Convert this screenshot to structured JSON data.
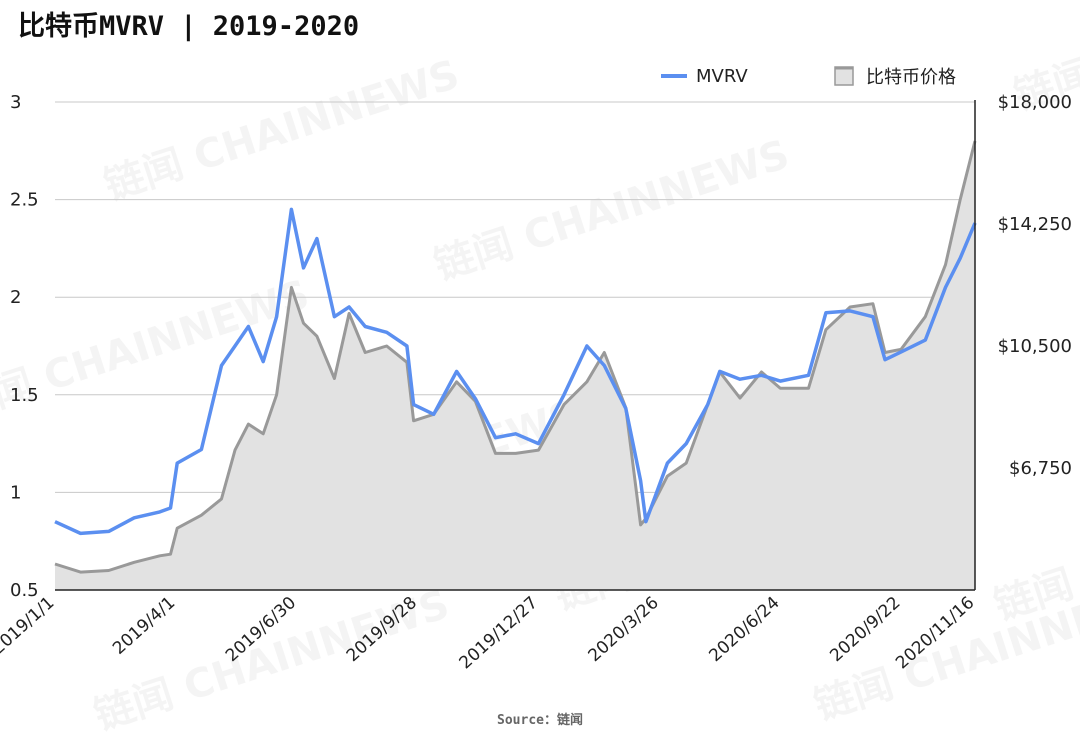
{
  "chart_data": {
    "type": "line",
    "title": "比特币MVRV | 2019-2020",
    "source": "Source：链闻",
    "watermark": "链闻 CHAINNEWS",
    "legend": {
      "placement": "top-right",
      "entries": [
        "MVRV",
        "比特币价格"
      ]
    },
    "colors": {
      "mvrv": "#5b8ff0",
      "price_line": "#999999",
      "price_fill": "#e2e2e2",
      "grid": "#c8c8c8"
    },
    "x_ticks": [
      "2019/1/1",
      "2019/4/1",
      "2019/6/30",
      "2019/9/28",
      "2019/12/27",
      "2020/3/26",
      "2020/6/24",
      "2020/9/22",
      "2020/11/16"
    ],
    "y_left": {
      "range": [
        0.5,
        3
      ],
      "ticks": [
        "0.5",
        "1",
        "1.5",
        "2",
        "2.5",
        "3"
      ]
    },
    "y_right": {
      "range": [
        3000,
        18000
      ],
      "ticks": [
        "$6,750",
        "$10,500",
        "$14,250",
        "$18,000"
      ]
    },
    "series": [
      {
        "name": "MVRV",
        "axis": "left",
        "x": [
          "2019/1/1",
          "2019/1/20",
          "2019/2/10",
          "2019/3/1",
          "2019/3/20",
          "2019/3/28",
          "2019/4/2",
          "2019/4/20",
          "2019/5/5",
          "2019/5/15",
          "2019/5/25",
          "2019/6/5",
          "2019/6/15",
          "2019/6/26",
          "2019/7/5",
          "2019/7/15",
          "2019/7/28",
          "2019/8/8",
          "2019/8/20",
          "2019/9/5",
          "2019/9/20",
          "2019/9/25",
          "2019/10/10",
          "2019/10/27",
          "2019/11/10",
          "2019/11/25",
          "2019/12/10",
          "2019/12/27",
          "2020/1/15",
          "2020/2/1",
          "2020/2/14",
          "2020/3/1",
          "2020/3/12",
          "2020/3/16",
          "2020/4/1",
          "2020/4/15",
          "2020/5/1",
          "2020/5/10",
          "2020/5/25",
          "2020/6/10",
          "2020/6/24",
          "2020/7/15",
          "2020/7/28",
          "2020/8/15",
          "2020/9/1",
          "2020/9/10",
          "2020/9/22",
          "2020/10/10",
          "2020/10/25",
          "2020/11/5",
          "2020/11/16"
        ],
        "values": [
          0.85,
          0.79,
          0.8,
          0.87,
          0.9,
          0.92,
          1.15,
          1.22,
          1.65,
          1.75,
          1.85,
          1.67,
          1.9,
          2.45,
          2.15,
          2.3,
          1.9,
          1.95,
          1.85,
          1.82,
          1.75,
          1.45,
          1.4,
          1.62,
          1.48,
          1.28,
          1.3,
          1.25,
          1.5,
          1.75,
          1.65,
          1.43,
          1.06,
          0.85,
          1.15,
          1.25,
          1.45,
          1.62,
          1.58,
          1.6,
          1.57,
          1.6,
          1.92,
          1.93,
          1.9,
          1.68,
          1.72,
          1.78,
          2.05,
          2.2,
          2.38
        ]
      },
      {
        "name": "比特币价格",
        "axis": "right",
        "x": [
          "2019/1/1",
          "2019/1/20",
          "2019/2/10",
          "2019/3/1",
          "2019/3/20",
          "2019/3/28",
          "2019/4/2",
          "2019/4/20",
          "2019/5/5",
          "2019/5/15",
          "2019/5/25",
          "2019/6/5",
          "2019/6/15",
          "2019/6/26",
          "2019/7/5",
          "2019/7/15",
          "2019/7/28",
          "2019/8/8",
          "2019/8/20",
          "2019/9/5",
          "2019/9/20",
          "2019/9/25",
          "2019/10/10",
          "2019/10/27",
          "2019/11/10",
          "2019/11/25",
          "2019/12/10",
          "2019/12/27",
          "2020/1/15",
          "2020/2/1",
          "2020/2/14",
          "2020/3/1",
          "2020/3/12",
          "2020/3/16",
          "2020/4/1",
          "2020/4/15",
          "2020/5/1",
          "2020/5/10",
          "2020/5/25",
          "2020/6/10",
          "2020/6/24",
          "2020/7/15",
          "2020/7/28",
          "2020/8/15",
          "2020/9/1",
          "2020/9/10",
          "2020/9/22",
          "2020/10/10",
          "2020/10/25",
          "2020/11/5",
          "2020/11/16"
        ],
        "values": [
          3800,
          3550,
          3600,
          3850,
          4050,
          4100,
          4900,
          5300,
          5800,
          7300,
          8100,
          7800,
          9000,
          12300,
          11200,
          10800,
          9500,
          11500,
          10300,
          10500,
          10000,
          8200,
          8400,
          9400,
          8800,
          7200,
          7200,
          7300,
          8700,
          9400,
          10300,
          8600,
          5000,
          5200,
          6500,
          6900,
          8700,
          9700,
          8900,
          9700,
          9200,
          9200,
          11000,
          11700,
          11800,
          10300,
          10400,
          11400,
          13000,
          15000,
          16800
        ]
      }
    ]
  }
}
